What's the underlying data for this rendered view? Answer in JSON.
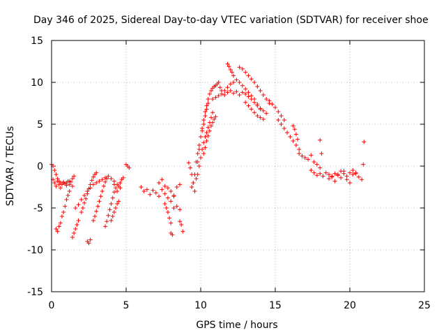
{
  "chart_data": {
    "type": "scatter",
    "title": "Day 346 of 2025, Sidereal Day-to-day VTEC variation (SDTVAR) for receiver shoe",
    "xlabel": "GPS time / hours",
    "ylabel": "SDTVAR / TECUs",
    "xlim": [
      0,
      25
    ],
    "ylim": [
      -15,
      15
    ],
    "xticks": [
      0,
      5,
      10,
      15,
      20,
      25
    ],
    "yticks": [
      -15,
      -10,
      -5,
      0,
      5,
      10,
      15
    ],
    "xtick_labels": [
      "0",
      "5",
      "10",
      "15",
      "20",
      "25"
    ],
    "ytick_labels": [
      "-15",
      "-10",
      "-5",
      "0",
      "5",
      "10",
      "15"
    ],
    "grid": true,
    "marker": "plus",
    "color": "#ff0000",
    "series": [
      {
        "name": "SDTVAR",
        "x": [
          0.0,
          0.1,
          0.2,
          0.3,
          0.4,
          0.5,
          0.6,
          0.7,
          0.8,
          0.9,
          1.0,
          1.1,
          1.2,
          1.3,
          1.4,
          1.5,
          0.1,
          0.2,
          0.3,
          0.4,
          0.5,
          0.6,
          0.8,
          1.0,
          1.2,
          1.4,
          0.3,
          0.4,
          0.5,
          0.6,
          0.7,
          0.8,
          0.9,
          1.0,
          1.1,
          1.2,
          1.4,
          1.5,
          1.6,
          1.7,
          1.8,
          1.6,
          1.8,
          2.0,
          2.2,
          2.4,
          2.6,
          2.8,
          3.0,
          3.2,
          3.4,
          3.6,
          3.8,
          4.0,
          4.2,
          4.4,
          4.6,
          2.0,
          2.1,
          2.2,
          2.3,
          2.4,
          2.5,
          2.6,
          2.7,
          2.8,
          2.9,
          3.0,
          2.4,
          2.5,
          2.6,
          2.8,
          2.9,
          3.0,
          3.1,
          3.2,
          3.3,
          3.4,
          3.5,
          3.6,
          3.7,
          3.6,
          3.7,
          3.8,
          3.9,
          4.0,
          4.1,
          4.2,
          4.0,
          4.1,
          4.2,
          4.3,
          4.4,
          4.5,
          4.2,
          4.3,
          4.4,
          4.5,
          4.6,
          4.7,
          4.8,
          5.0,
          5.1,
          5.2,
          6.0,
          6.2,
          6.4,
          6.6,
          6.8,
          7.0,
          7.2,
          7.4,
          7.6,
          7.8,
          8.0,
          8.2,
          8.4,
          8.6,
          7.2,
          7.4,
          7.6,
          7.8,
          8.0,
          8.2,
          7.6,
          7.7,
          7.8,
          7.9,
          8.0,
          8.0,
          8.1,
          8.2,
          8.4,
          8.6,
          8.6,
          8.7,
          8.8,
          9.2,
          9.3,
          9.4,
          9.5,
          9.6,
          9.7,
          9.8,
          9.9,
          10.0,
          10.1,
          10.2,
          10.3,
          10.4,
          10.5,
          10.6,
          10.7,
          10.8,
          10.9,
          11.0,
          11.1,
          11.2,
          11.3,
          11.4,
          9.4,
          9.5,
          9.6,
          9.7,
          9.8,
          9.9,
          10.0,
          10.1,
          10.2,
          10.3,
          10.4,
          10.5,
          9.8,
          9.9,
          10.0,
          10.1,
          10.2,
          10.3,
          10.4,
          10.5,
          10.6,
          10.7,
          10.8,
          10.2,
          10.3,
          10.4,
          10.5,
          10.6,
          10.7,
          10.8,
          10.9,
          11.0,
          10.8,
          11.0,
          11.2,
          11.4,
          11.6,
          11.8,
          12.0,
          12.2,
          12.4,
          12.6,
          12.8,
          13.0,
          13.2,
          13.4,
          13.6,
          13.8,
          14.0,
          14.2,
          14.4,
          11.6,
          11.8,
          12.0,
          12.2,
          12.4,
          12.6,
          12.8,
          13.0,
          13.2,
          13.4,
          13.6,
          13.8,
          14.0,
          11.8,
          11.9,
          12.0,
          12.1,
          12.2,
          12.6,
          12.8,
          13.0,
          13.2,
          13.4,
          13.6,
          13.8,
          14.0,
          14.2,
          14.4,
          14.6,
          13.0,
          13.2,
          13.4,
          13.6,
          13.8,
          14.0,
          14.2,
          14.6,
          14.8,
          15.0,
          15.2,
          15.4,
          15.6,
          15.2,
          15.4,
          15.6,
          15.8,
          16.0,
          16.2,
          16.4,
          16.6,
          16.2,
          16.3,
          16.4,
          16.5,
          16.6,
          16.8,
          17.0,
          17.2,
          17.4,
          17.6,
          17.8,
          18.0,
          17.4,
          17.6,
          17.8,
          18.0,
          18.2,
          18.4,
          18.6,
          18.8,
          19.0,
          19.2,
          19.4,
          19.6,
          19.8,
          20.0,
          20.2,
          20.4,
          18.0,
          18.1,
          18.6,
          18.8,
          19.0,
          19.2,
          19.4,
          19.6,
          19.8,
          20.0,
          20.2,
          20.4,
          20.6,
          20.8,
          20.9,
          20.95
        ],
        "y": [
          0.2,
          0.0,
          -0.5,
          -1.0,
          -1.5,
          -1.8,
          -2.0,
          -2.2,
          -1.9,
          -2.1,
          -2.0,
          -1.8,
          -2.2,
          -1.9,
          -1.5,
          -1.2,
          -1.6,
          -2.0,
          -2.4,
          -1.8,
          -2.2,
          -2.6,
          -2.0,
          -2.3,
          -1.8,
          -2.4,
          -7.5,
          -7.8,
          -7.2,
          -6.8,
          -6.0,
          -5.5,
          -4.8,
          -4.0,
          -3.5,
          -3.0,
          -8.5,
          -8.0,
          -7.5,
          -7.0,
          -6.5,
          -5.0,
          -4.6,
          -4.0,
          -3.5,
          -3.0,
          -2.6,
          -2.2,
          -2.0,
          -1.8,
          -1.6,
          -1.4,
          -1.2,
          -1.5,
          -1.8,
          -2.2,
          -2.6,
          -5.5,
          -5.0,
          -4.4,
          -3.9,
          -3.3,
          -2.7,
          -2.2,
          -1.7,
          -1.3,
          -1.0,
          -0.8,
          -9.0,
          -9.2,
          -8.8,
          -6.5,
          -6.0,
          -5.4,
          -4.8,
          -4.2,
          -3.6,
          -3.0,
          -2.4,
          -1.9,
          -1.5,
          -7.2,
          -6.6,
          -5.9,
          -5.2,
          -4.5,
          -3.8,
          -3.1,
          -6.5,
          -6.0,
          -5.5,
          -5.0,
          -4.5,
          -4.2,
          -2.2,
          -2.6,
          -3.0,
          -2.4,
          -2.0,
          -1.6,
          -1.4,
          0.2,
          0.0,
          -0.2,
          -2.5,
          -3.0,
          -2.8,
          -3.4,
          -2.9,
          -3.2,
          -3.6,
          -2.8,
          -3.3,
          -2.6,
          -3.0,
          -3.5,
          -2.5,
          -2.2,
          -2.0,
          -1.6,
          -2.4,
          -3.8,
          -4.2,
          -3.6,
          -4.5,
          -5.0,
          -5.5,
          -6.2,
          -6.8,
          -8.0,
          -8.2,
          -5.0,
          -4.8,
          -5.2,
          -6.6,
          -7.0,
          -7.8,
          0.4,
          -0.2,
          -1.0,
          -2.0,
          -3.0,
          -1.5,
          0.5,
          2.0,
          3.5,
          4.5,
          5.5,
          6.5,
          7.2,
          8.0,
          8.6,
          9.0,
          9.3,
          9.5,
          9.6,
          9.8,
          10.0,
          9.4,
          9.0,
          -2.5,
          -2.0,
          -1.0,
          0.5,
          1.5,
          2.5,
          3.5,
          4.2,
          5.0,
          6.0,
          6.8,
          7.5,
          -1.0,
          0.0,
          1.0,
          2.0,
          2.8,
          3.5,
          4.0,
          4.6,
          5.2,
          5.8,
          6.4,
          1.5,
          2.2,
          3.0,
          3.6,
          4.2,
          4.8,
          5.2,
          5.6,
          5.9,
          8.0,
          8.2,
          8.4,
          8.6,
          8.5,
          8.8,
          9.0,
          8.7,
          8.9,
          8.5,
          8.8,
          8.6,
          8.3,
          8.0,
          7.6,
          7.2,
          6.9,
          6.6,
          6.3,
          9.0,
          9.4,
          9.8,
          10.0,
          10.3,
          10.0,
          9.6,
          9.2,
          8.8,
          8.4,
          8.0,
          7.4,
          6.8,
          12.2,
          11.9,
          11.5,
          11.2,
          10.8,
          11.8,
          11.6,
          11.2,
          10.8,
          10.4,
          10.0,
          9.5,
          9.0,
          8.5,
          8.0,
          7.5,
          7.6,
          7.2,
          6.8,
          6.4,
          6.0,
          5.8,
          5.6,
          7.8,
          7.4,
          7.0,
          6.5,
          6.0,
          5.5,
          5.5,
          5.0,
          4.5,
          4.0,
          3.5,
          3.0,
          2.5,
          2.0,
          4.8,
          4.4,
          3.8,
          3.2,
          1.5,
          1.2,
          1.0,
          0.8,
          1.3,
          0.5,
          0.2,
          -0.2,
          -0.5,
          -0.8,
          -1.1,
          -0.9,
          -1.2,
          -0.8,
          -1.0,
          -1.3,
          -0.9,
          -1.1,
          -0.6,
          -0.9,
          -1.2,
          -0.8,
          -0.5,
          -0.9,
          3.1,
          1.5,
          -1.5,
          -1.2,
          -1.8,
          -1.0,
          -1.4,
          -0.6,
          -1.6,
          -2.0,
          -1.0,
          -0.8,
          -1.3,
          -1.6,
          0.2,
          2.9
        ]
      }
    ]
  }
}
